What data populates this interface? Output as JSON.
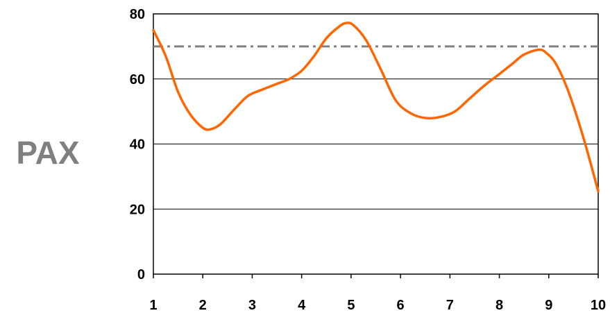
{
  "chart_data": {
    "type": "line",
    "title": "",
    "xlabel": "",
    "ylabel": "PAX",
    "x": [
      1,
      1.25,
      1.5,
      1.75,
      2,
      2.15,
      2.35,
      2.6,
      2.85,
      3,
      3.25,
      3.5,
      3.75,
      4,
      4.25,
      4.5,
      4.75,
      4.9,
      5.05,
      5.3,
      5.6,
      5.9,
      6.2,
      6.5,
      6.8,
      7.1,
      7.4,
      7.7,
      8,
      8.25,
      8.5,
      8.8,
      8.95,
      9.15,
      9.4,
      9.7,
      10
    ],
    "series": [
      {
        "name": "",
        "values": [
          75,
          67,
          56,
          49,
          45,
          44.5,
          46,
          50,
          54,
          55.5,
          57,
          58.5,
          60,
          62.5,
          67,
          72.5,
          76,
          77.2,
          76.5,
          72,
          63,
          53.5,
          49.5,
          48,
          48.3,
          50,
          54,
          58,
          61.5,
          64.5,
          67.5,
          69,
          68,
          64.5,
          56,
          42,
          25.5
        ],
        "color": "#FF6600"
      }
    ],
    "reference_line": {
      "value": 70,
      "color": "#808080",
      "style": "dash-dot"
    },
    "xticks": [
      "1",
      "2",
      "3",
      "4",
      "5",
      "6",
      "7",
      "8",
      "9",
      "10"
    ],
    "yticks": [
      "0",
      "20",
      "40",
      "60",
      "80"
    ],
    "xlim": [
      1,
      10
    ],
    "ylim": [
      0,
      80
    ],
    "grid": "horizontal",
    "legend": "none"
  }
}
